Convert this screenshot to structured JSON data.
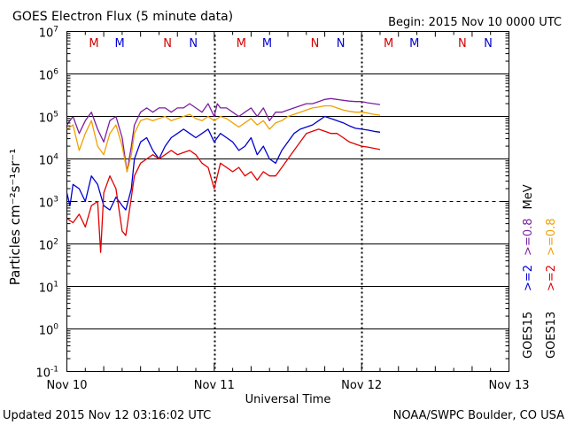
{
  "chart_data": {
    "type": "line",
    "title": "GOES Electron Flux (5 minute data)",
    "begin": "Begin: 2015 Nov 10 0000 UTC",
    "updated": "Updated 2015 Nov 12 03:16:02 UTC",
    "source": "NOAA/SWPC Boulder, CO USA",
    "xlabel": "Universal Time",
    "ylabel": "Particles cm⁻²s⁻¹sr⁻¹",
    "xlim_hours": [
      0,
      72
    ],
    "ylim_log10": [
      -1,
      7
    ],
    "x_ticks": [
      {
        "hour": 0,
        "label": "Nov 10"
      },
      {
        "hour": 24,
        "label": "Nov 11"
      },
      {
        "hour": 48,
        "label": "Nov 12"
      },
      {
        "hour": 72,
        "label": "Nov 13"
      }
    ],
    "y_ticks": [
      {
        "base": "10",
        "exp": "7",
        "value": 7
      },
      {
        "base": "10",
        "exp": "6",
        "value": 6
      },
      {
        "base": "10",
        "exp": "5",
        "value": 5
      },
      {
        "base": "10",
        "exp": "4",
        "value": 4
      },
      {
        "base": "10",
        "exp": "3",
        "value": 3
      },
      {
        "base": "10",
        "exp": "2",
        "value": 2
      },
      {
        "base": "10",
        "exp": "1",
        "value": 1
      },
      {
        "base": "10",
        "exp": "0",
        "value": 0
      },
      {
        "base": "10",
        "exp": "-1",
        "value": -1
      }
    ],
    "solid_gridlines": [
      6,
      5,
      4,
      2,
      1,
      0
    ],
    "dashed_threshold": 3,
    "day_boundaries_hours": [
      24,
      48
    ],
    "noon_midnight_markers": [
      {
        "hour": 4.4,
        "label": "M",
        "color": "#d00000"
      },
      {
        "hour": 8.6,
        "label": "M",
        "color": "#0000d0"
      },
      {
        "hour": 16.4,
        "label": "N",
        "color": "#d00000"
      },
      {
        "hour": 20.6,
        "label": "N",
        "color": "#0000d0"
      },
      {
        "hour": 28.4,
        "label": "M",
        "color": "#d00000"
      },
      {
        "hour": 32.6,
        "label": "M",
        "color": "#0000d0"
      },
      {
        "hour": 40.4,
        "label": "N",
        "color": "#d00000"
      },
      {
        "hour": 44.6,
        "label": "N",
        "color": "#0000d0"
      },
      {
        "hour": 52.4,
        "label": "M",
        "color": "#d00000"
      },
      {
        "hour": 56.6,
        "label": "M",
        "color": "#0000d0"
      },
      {
        "hour": 64.4,
        "label": "N",
        "color": "#d00000"
      },
      {
        "hour": 68.6,
        "label": "N",
        "color": "#0000d0"
      }
    ],
    "legend": {
      "position": "right",
      "rows": [
        {
          "label": "GOES15",
          "color": "#000000",
          "items": [
            {
              "text": ">=2",
              "color": "#0000d0"
            },
            {
              "text": ">=0.8",
              "color": "#7b1fa2"
            },
            {
              "text": "MeV",
              "color": "#000000"
            }
          ]
        },
        {
          "label": "GOES13",
          "color": "#000000",
          "items": [
            {
              "text": ">=2",
              "color": "#e00000"
            },
            {
              "text": ">=0.8",
              "color": "#f0a000"
            }
          ]
        }
      ]
    },
    "series": [
      {
        "name": "GOES15 >=0.8 MeV",
        "color": "#7b1fa2",
        "points": [
          [
            0,
            4.8
          ],
          [
            1,
            5.0
          ],
          [
            2,
            4.6
          ],
          [
            3,
            4.9
          ],
          [
            4,
            5.1
          ],
          [
            5,
            4.7
          ],
          [
            6,
            4.4
          ],
          [
            7,
            4.9
          ],
          [
            8,
            5.0
          ],
          [
            9,
            4.5
          ],
          [
            9.8,
            3.7
          ],
          [
            10.5,
            4.3
          ],
          [
            11,
            4.8
          ],
          [
            12,
            5.1
          ],
          [
            13,
            5.2
          ],
          [
            14,
            5.1
          ],
          [
            15,
            5.2
          ],
          [
            16,
            5.2
          ],
          [
            17,
            5.1
          ],
          [
            18,
            5.2
          ],
          [
            19,
            5.2
          ],
          [
            20,
            5.3
          ],
          [
            21,
            5.2
          ],
          [
            22,
            5.1
          ],
          [
            23,
            5.3
          ],
          [
            24,
            5.0
          ],
          [
            24.5,
            5.3
          ],
          [
            25,
            5.2
          ],
          [
            26,
            5.2
          ],
          [
            27,
            5.1
          ],
          [
            28,
            5.0
          ],
          [
            29,
            5.1
          ],
          [
            30,
            5.2
          ],
          [
            31,
            5.0
          ],
          [
            32,
            5.2
          ],
          [
            33,
            4.9
          ],
          [
            34,
            5.1
          ],
          [
            35,
            5.1
          ],
          [
            36,
            5.15
          ],
          [
            37,
            5.2
          ],
          [
            38,
            5.25
          ],
          [
            39,
            5.3
          ],
          [
            40,
            5.3
          ],
          [
            41,
            5.35
          ],
          [
            42,
            5.4
          ],
          [
            43,
            5.42
          ],
          [
            44,
            5.4
          ],
          [
            45,
            5.38
          ],
          [
            46,
            5.36
          ],
          [
            47,
            5.35
          ],
          [
            48,
            5.35
          ],
          [
            49,
            5.32
          ],
          [
            50,
            5.3
          ],
          [
            51,
            5.28
          ]
        ]
      },
      {
        "name": "GOES13 >=0.8 MeV",
        "color": "#f0a000",
        "points": [
          [
            0,
            4.7
          ],
          [
            1,
            4.8
          ],
          [
            2,
            4.2
          ],
          [
            3,
            4.6
          ],
          [
            4,
            4.9
          ],
          [
            5,
            4.3
          ],
          [
            6,
            4.1
          ],
          [
            7,
            4.6
          ],
          [
            8,
            4.8
          ],
          [
            9,
            4.3
          ],
          [
            9.8,
            3.7
          ],
          [
            10.5,
            4.1
          ],
          [
            11,
            4.6
          ],
          [
            12,
            4.9
          ],
          [
            13,
            4.95
          ],
          [
            14,
            4.9
          ],
          [
            15,
            4.95
          ],
          [
            16,
            5.0
          ],
          [
            17,
            4.9
          ],
          [
            18,
            4.95
          ],
          [
            19,
            5.0
          ],
          [
            20,
            5.05
          ],
          [
            21,
            4.95
          ],
          [
            22,
            4.9
          ],
          [
            23,
            5.0
          ],
          [
            24,
            4.9
          ],
          [
            25,
            5.0
          ],
          [
            26,
            4.95
          ],
          [
            27,
            4.85
          ],
          [
            28,
            4.75
          ],
          [
            29,
            4.85
          ],
          [
            30,
            4.95
          ],
          [
            31,
            4.8
          ],
          [
            32,
            4.9
          ],
          [
            33,
            4.7
          ],
          [
            34,
            4.85
          ],
          [
            35,
            4.9
          ],
          [
            36,
            5.0
          ],
          [
            37,
            5.05
          ],
          [
            38,
            5.1
          ],
          [
            39,
            5.15
          ],
          [
            40,
            5.2
          ],
          [
            41,
            5.22
          ],
          [
            42,
            5.25
          ],
          [
            43,
            5.25
          ],
          [
            44,
            5.2
          ],
          [
            45,
            5.15
          ],
          [
            46,
            5.12
          ],
          [
            47,
            5.1
          ],
          [
            48,
            5.1
          ],
          [
            49,
            5.08
          ],
          [
            50,
            5.05
          ],
          [
            51,
            5.03
          ]
        ]
      },
      {
        "name": "GOES15 >=2 MeV",
        "color": "#0000d0",
        "points": [
          [
            0,
            3.2
          ],
          [
            0.5,
            2.9
          ],
          [
            1,
            3.4
          ],
          [
            2,
            3.3
          ],
          [
            3,
            3.0
          ],
          [
            4,
            3.6
          ],
          [
            5,
            3.4
          ],
          [
            6,
            2.9
          ],
          [
            7,
            2.8
          ],
          [
            8,
            3.1
          ],
          [
            9,
            2.9
          ],
          [
            9.6,
            2.8
          ],
          [
            10.5,
            3.3
          ],
          [
            11,
            4.0
          ],
          [
            12,
            4.4
          ],
          [
            13,
            4.5
          ],
          [
            14,
            4.2
          ],
          [
            15,
            4.0
          ],
          [
            16,
            4.3
          ],
          [
            17,
            4.5
          ],
          [
            18,
            4.6
          ],
          [
            19,
            4.7
          ],
          [
            20,
            4.6
          ],
          [
            21,
            4.5
          ],
          [
            22,
            4.6
          ],
          [
            23,
            4.7
          ],
          [
            24,
            4.4
          ],
          [
            25,
            4.6
          ],
          [
            26,
            4.5
          ],
          [
            27,
            4.4
          ],
          [
            28,
            4.2
          ],
          [
            29,
            4.3
          ],
          [
            30,
            4.5
          ],
          [
            31,
            4.1
          ],
          [
            32,
            4.3
          ],
          [
            33,
            4.0
          ],
          [
            34,
            3.9
          ],
          [
            35,
            4.2
          ],
          [
            36,
            4.4
          ],
          [
            37,
            4.6
          ],
          [
            38,
            4.7
          ],
          [
            39,
            4.75
          ],
          [
            40,
            4.8
          ],
          [
            41,
            4.9
          ],
          [
            42,
            5.0
          ],
          [
            43,
            4.95
          ],
          [
            44,
            4.9
          ],
          [
            45,
            4.85
          ],
          [
            46,
            4.78
          ],
          [
            47,
            4.72
          ],
          [
            48,
            4.7
          ],
          [
            49,
            4.68
          ],
          [
            50,
            4.65
          ],
          [
            51,
            4.63
          ]
        ]
      },
      {
        "name": "GOES13 >=2 MeV",
        "color": "#e00000",
        "points": [
          [
            0,
            2.6
          ],
          [
            1,
            2.5
          ],
          [
            2,
            2.7
          ],
          [
            3,
            2.4
          ],
          [
            4,
            2.9
          ],
          [
            5,
            3.0
          ],
          [
            5.5,
            1.8
          ],
          [
            6,
            3.2
          ],
          [
            7,
            3.6
          ],
          [
            8,
            3.3
          ],
          [
            9,
            2.3
          ],
          [
            9.6,
            2.2
          ],
          [
            10.5,
            3.1
          ],
          [
            11,
            3.6
          ],
          [
            12,
            3.9
          ],
          [
            13,
            4.0
          ],
          [
            14,
            4.1
          ],
          [
            15,
            4.0
          ],
          [
            16,
            4.1
          ],
          [
            17,
            4.2
          ],
          [
            18,
            4.1
          ],
          [
            19,
            4.15
          ],
          [
            20,
            4.2
          ],
          [
            21,
            4.1
          ],
          [
            22,
            3.9
          ],
          [
            23,
            3.8
          ],
          [
            24,
            3.3
          ],
          [
            25,
            3.9
          ],
          [
            26,
            3.8
          ],
          [
            27,
            3.7
          ],
          [
            28,
            3.8
          ],
          [
            29,
            3.6
          ],
          [
            30,
            3.7
          ],
          [
            31,
            3.5
          ],
          [
            32,
            3.7
          ],
          [
            33,
            3.6
          ],
          [
            34,
            3.6
          ],
          [
            35,
            3.8
          ],
          [
            36,
            4.0
          ],
          [
            37,
            4.2
          ],
          [
            38,
            4.4
          ],
          [
            39,
            4.6
          ],
          [
            40,
            4.65
          ],
          [
            41,
            4.7
          ],
          [
            42,
            4.65
          ],
          [
            43,
            4.6
          ],
          [
            44,
            4.6
          ],
          [
            45,
            4.5
          ],
          [
            46,
            4.4
          ],
          [
            47,
            4.35
          ],
          [
            48,
            4.3
          ],
          [
            49,
            4.28
          ],
          [
            50,
            4.25
          ],
          [
            51,
            4.22
          ]
        ]
      }
    ]
  }
}
